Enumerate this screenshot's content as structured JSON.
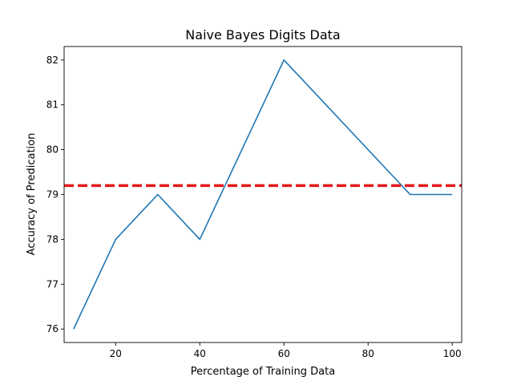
{
  "chart_data": {
    "type": "line",
    "title": "Naive Bayes Digits Data",
    "xlabel": "Percentage of Training Data",
    "ylabel": "Accuracy of Predication",
    "xlim": [
      7.75,
      102.25
    ],
    "ylim": [
      75.7,
      82.3
    ],
    "xticks": [
      20,
      40,
      60,
      80,
      100
    ],
    "yticks": [
      76,
      77,
      78,
      79,
      80,
      81,
      82
    ],
    "grid": false,
    "series": [
      {
        "x": [
          10,
          20,
          30,
          40,
          60,
          90,
          100
        ],
        "y": [
          76,
          78,
          79,
          78,
          82,
          79,
          79
        ],
        "color": "#1f77b4"
      }
    ],
    "reference_line": {
      "orientation": "horizontal",
      "y": 79.2,
      "color": "#e31a1c",
      "style": "dashed"
    }
  }
}
